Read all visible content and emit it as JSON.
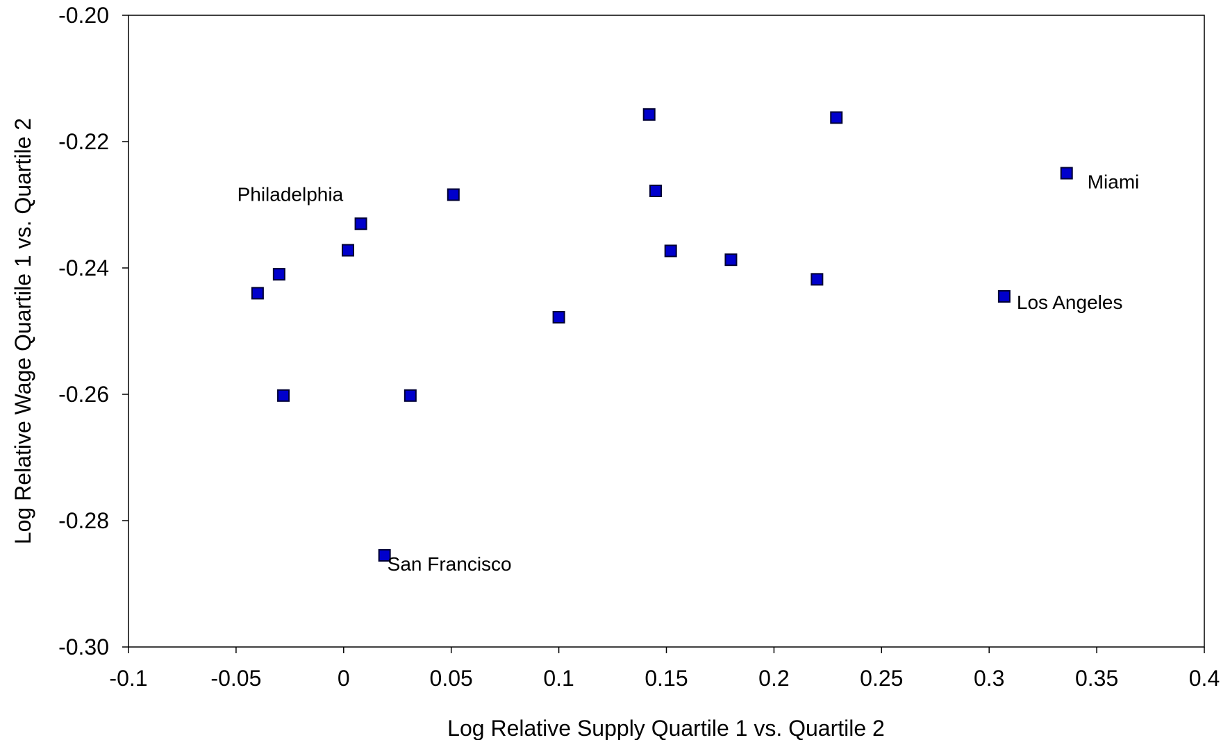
{
  "chart_data": {
    "type": "scatter",
    "title": "",
    "xlabel": "Log Relative Supply Quartile 1 vs. Quartile 2",
    "ylabel": "Log Relative Wage Quartile 1 vs. Quartile 2",
    "xlim": [
      -0.1,
      0.4
    ],
    "ylim": [
      -0.3,
      -0.2
    ],
    "x_ticks": [
      "-0.1",
      "-0.05",
      "0",
      "0.05",
      "0.1",
      "0.15",
      "0.2",
      "0.25",
      "0.3",
      "0.35",
      "0.4"
    ],
    "y_ticks": [
      "-0.20",
      "-0.22",
      "-0.24",
      "-0.26",
      "-0.28",
      "-0.30"
    ],
    "grid": false,
    "marker_color": "#0000cc",
    "marker_edge_color": "#000033",
    "points": [
      {
        "x": -0.04,
        "y": -0.244
      },
      {
        "x": -0.03,
        "y": -0.241
      },
      {
        "x": -0.028,
        "y": -0.2602
      },
      {
        "x": 0.002,
        "y": -0.2372
      },
      {
        "x": 0.008,
        "y": -0.233
      },
      {
        "x": 0.019,
        "y": -0.2855
      },
      {
        "x": 0.031,
        "y": -0.2602
      },
      {
        "x": 0.051,
        "y": -0.2284
      },
      {
        "x": 0.1,
        "y": -0.2478
      },
      {
        "x": 0.142,
        "y": -0.2157
      },
      {
        "x": 0.145,
        "y": -0.2278
      },
      {
        "x": 0.152,
        "y": -0.2373
      },
      {
        "x": 0.18,
        "y": -0.2387
      },
      {
        "x": 0.22,
        "y": -0.2418
      },
      {
        "x": 0.229,
        "y": -0.2162
      },
      {
        "x": 0.307,
        "y": -0.2445
      },
      {
        "x": 0.336,
        "y": -0.225
      }
    ],
    "annotations": [
      {
        "text": "Philadelphia",
        "x": 0.008,
        "y": -0.233
      },
      {
        "text": "San Francisco",
        "x": 0.019,
        "y": -0.2855
      },
      {
        "text": "Los Angeles",
        "x": 0.307,
        "y": -0.2445
      },
      {
        "text": "Miami",
        "x": 0.336,
        "y": -0.225
      }
    ]
  }
}
